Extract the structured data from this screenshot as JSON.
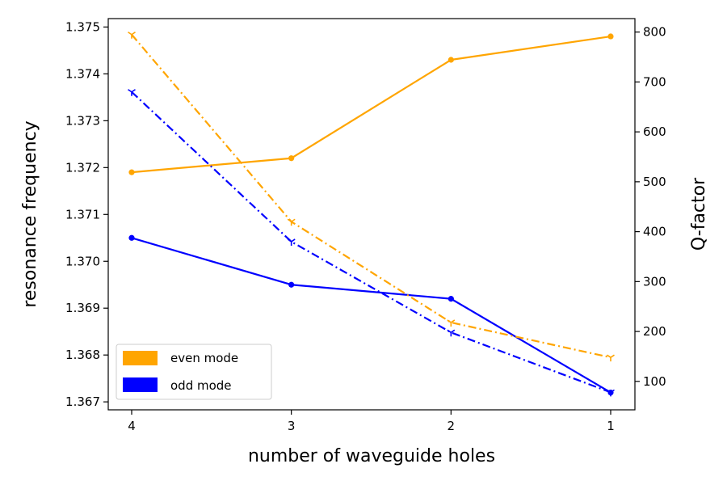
{
  "chart_data": {
    "type": "line",
    "x_axis": {
      "label": "number of waveguide holes",
      "categories": [
        "4",
        "3",
        "2",
        "1"
      ],
      "inverted": true
    },
    "y_left": {
      "label": "resonance frequency",
      "ylim": [
        1.36683,
        1.37518
      ],
      "ticks": [
        1.367,
        1.368,
        1.369,
        1.37,
        1.371,
        1.372,
        1.373,
        1.374,
        1.375
      ],
      "tick_labels": [
        "1.367",
        "1.368",
        "1.369",
        "1.370",
        "1.371",
        "1.372",
        "1.373",
        "1.374",
        "1.375"
      ]
    },
    "y_right": {
      "label": "Q-factor",
      "ylim": [
        43,
        827
      ],
      "ticks": [
        100,
        200,
        300,
        400,
        500,
        600,
        700,
        800
      ],
      "tick_labels": [
        "100",
        "200",
        "300",
        "400",
        "500",
        "600",
        "700",
        "800"
      ]
    },
    "series": [
      {
        "key": "even-frequency",
        "axis": "left",
        "color": "#ffa500",
        "style": "solid",
        "marker": "dot",
        "values": [
          1.3719,
          1.3722,
          1.3743,
          1.3748
        ]
      },
      {
        "key": "odd-frequency",
        "axis": "left",
        "color": "#0000ff",
        "style": "solid",
        "marker": "dot",
        "values": [
          1.3705,
          1.3695,
          1.3692,
          1.3672
        ]
      },
      {
        "key": "even-q",
        "axis": "right",
        "color": "#ffa500",
        "style": "dashdot",
        "marker": "tri",
        "values": [
          795,
          420,
          218,
          148
        ]
      },
      {
        "key": "odd-q",
        "axis": "right",
        "color": "#0000ff",
        "style": "dashdot",
        "marker": "tri",
        "values": [
          680,
          380,
          198,
          78
        ]
      }
    ],
    "legend": {
      "position": "lower-left",
      "entries": [
        {
          "label": "even mode",
          "color": "#ffa500"
        },
        {
          "label": "odd mode",
          "color": "#0000ff"
        }
      ]
    },
    "grid": false
  }
}
